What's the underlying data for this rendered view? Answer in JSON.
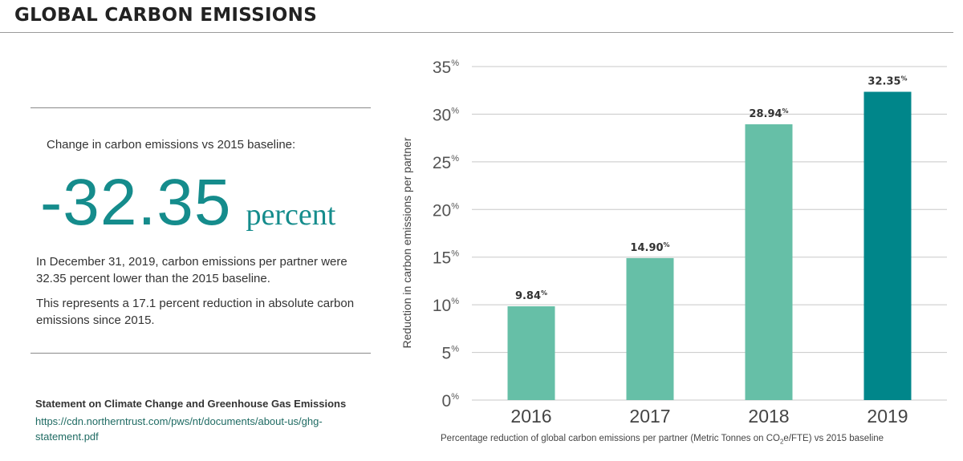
{
  "header": {
    "title": "GLOBAL CARBON EMISSIONS"
  },
  "kpi": {
    "caption": "Change in carbon emissions vs 2015 baseline:",
    "value": "-32.35",
    "unit": "percent"
  },
  "body": {
    "paragraph1": "In December 31, 2019, carbon emissions per partner were 32.35 percent lower than the 2015 baseline.",
    "paragraph2": "This represents a 17.1 percent reduction in absolute carbon emissions since 2015."
  },
  "statement": {
    "title": "Statement on Climate Change and Greenhouse Gas Emissions",
    "url": "https://cdn.northerntrust.com/pws/nt/documents/about-us/ghg-statement.pdf"
  },
  "chart_caption": {
    "before": "Percentage reduction of global carbon emissions per partner (Metric Tonnes on CO",
    "sub": "2",
    "after": "e/FTE) vs 2015 baseline"
  },
  "colors": {
    "accent": "#158c8c",
    "bar_light": "#66bfa7",
    "bar_dark": "#00868a",
    "grid": "#c8c8c8"
  },
  "chart_data": {
    "type": "bar",
    "categories": [
      "2016",
      "2017",
      "2018",
      "2019"
    ],
    "values": [
      9.84,
      14.9,
      28.94,
      32.35
    ],
    "data_labels": [
      "9.84",
      "14.90",
      "28.94",
      "32.35"
    ],
    "ylabel": "Reduction in carbon emissions per partner",
    "ylim": [
      0,
      35
    ],
    "yticks": [
      0,
      5,
      10,
      15,
      20,
      25,
      30,
      35
    ],
    "ytick_suffix": "%",
    "highlight_index": 3,
    "grid": true
  }
}
